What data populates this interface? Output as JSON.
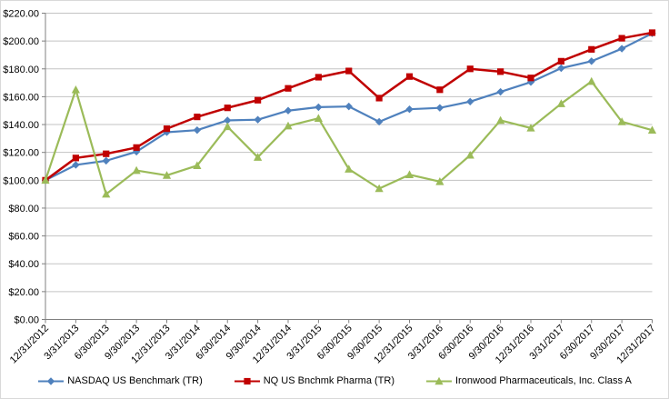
{
  "chart_data": {
    "type": "line",
    "title": "",
    "categories": [
      "12/31/2012",
      "3/31/2013",
      "6/30/2013",
      "9/30/2013",
      "12/31/2013",
      "3/31/2014",
      "6/30/2014",
      "9/30/2014",
      "12/31/2014",
      "3/31/2015",
      "6/30/2015",
      "9/30/2015",
      "12/31/2015",
      "3/31/2016",
      "6/30/2016",
      "9/30/2016",
      "12/31/2016",
      "3/31/2017",
      "6/30/2017",
      "9/30/2017",
      "12/31/2017"
    ],
    "series": [
      {
        "name": "NASDAQ US Benchmark (TR)",
        "color": "#4F81BD",
        "marker": "diamond",
        "line_width": 2.2,
        "values": [
          100,
          111,
          114,
          120.5,
          134.5,
          136,
          143,
          143.5,
          150,
          152.5,
          153,
          142,
          151,
          152,
          156.5,
          163.5,
          170.5,
          180.5,
          185.5,
          194.5,
          205.5
        ]
      },
      {
        "name": "NQ US Bnchmk Pharma (TR)",
        "color": "#C00000",
        "marker": "square",
        "line_width": 2.5,
        "values": [
          100,
          116,
          119,
          123.5,
          137,
          145.5,
          152,
          157.5,
          166,
          174,
          178.5,
          159,
          174.5,
          165,
          180,
          178,
          173.5,
          185.5,
          194,
          202,
          206
        ]
      },
      {
        "name": "Ironwood Pharmaceuticals, Inc. Class A",
        "color": "#9BBB59",
        "marker": "triangle",
        "line_width": 2.2,
        "values": [
          100,
          165,
          90,
          107,
          103.5,
          110.5,
          138.5,
          116.5,
          139,
          144.5,
          108,
          94,
          104,
          99,
          118,
          143,
          137.5,
          155,
          171,
          142,
          136
        ]
      }
    ],
    "y_axis": {
      "min": 0,
      "max": 220,
      "step": 20,
      "tick_labels": [
        "$0.00",
        "$20.00",
        "$40.00",
        "$60.00",
        "$80.00",
        "$100.00",
        "$120.00",
        "$140.00",
        "$160.00",
        "$180.00",
        "$200.00",
        "$220.00"
      ]
    },
    "x_axis": {
      "label_rotation_deg": 45
    },
    "grid": true,
    "legend_position": "bottom"
  },
  "colors": {
    "background": "#FFFFFF",
    "frame_border": "#D9D9D9",
    "gridline": "#C3C3C3",
    "axis": "#808080",
    "tick_text": "#000000"
  }
}
